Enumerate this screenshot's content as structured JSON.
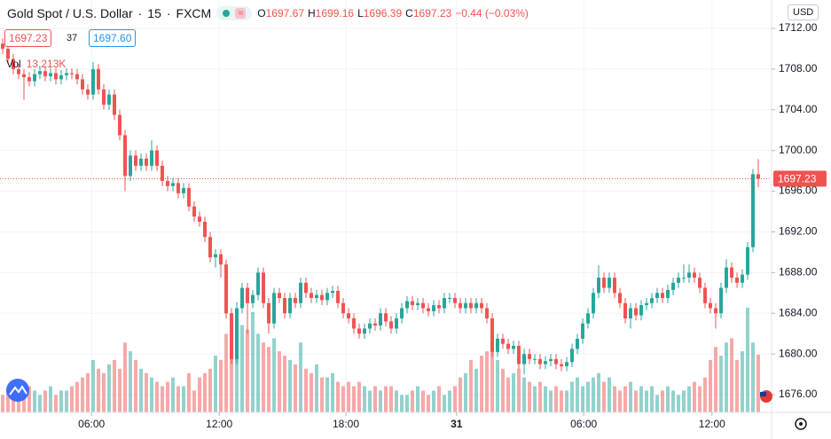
{
  "header": {
    "symbol": "Gold Spot / U.S. Dollar",
    "interval": "15",
    "source": "FXCM",
    "ohlc": [
      {
        "key": "O",
        "value": "1697.67"
      },
      {
        "key": "H",
        "value": "1699.16"
      },
      {
        "key": "L",
        "value": "1696.39"
      },
      {
        "key": "C",
        "value": "1697.23"
      }
    ],
    "change": "−0.44 (−0.03%)",
    "bid": "1697.23",
    "spread": "37",
    "ask": "1697.60",
    "volume_name": "Vol",
    "volume_label": "13.213K",
    "currency": "USD",
    "last_price_label": "1697.23"
  },
  "chart_data": {
    "type": "candlestick",
    "up_color": "#26a69a",
    "down_color": "#ef5350",
    "grid": true,
    "xlim": [
      -0.5,
      144.5
    ],
    "ylim": [
      1674.26,
      1714.79
    ],
    "volume_lim": [
      0,
      94.5
    ],
    "xticks": [
      {
        "value": 16.7,
        "label": "06:00"
      },
      {
        "value": 40.7,
        "label": "12:00"
      },
      {
        "value": 64.5,
        "label": "18:00"
      },
      {
        "value": 85.3,
        "label": "31"
      },
      {
        "value": 109.2,
        "label": "06:00"
      },
      {
        "value": 133.3,
        "label": "12:00"
      }
    ],
    "yticks": [
      {
        "value": 1676,
        "label": "1676.00"
      },
      {
        "value": 1680,
        "label": "1680.00"
      },
      {
        "value": 1684,
        "label": "1684.00"
      },
      {
        "value": 1688,
        "label": "1688.00"
      },
      {
        "value": 1692,
        "label": "1692.00"
      },
      {
        "value": 1696,
        "label": "1696.00"
      },
      {
        "value": 1700,
        "label": "1700.00"
      },
      {
        "value": 1704,
        "label": "1704.00"
      },
      {
        "value": 1708,
        "label": "1708.00"
      },
      {
        "value": 1712,
        "label": "1712.00"
      }
    ],
    "open": [
      1710.5,
      1710,
      1709,
      1708,
      1707.5,
      1707.2,
      1706.8,
      1707.5,
      1707.8,
      1707.3,
      1707.6,
      1707.0,
      1707.4,
      1707.6,
      1707.5,
      1707.0,
      1706.0,
      1705.5,
      1708,
      1706,
      1704.5,
      1705.5,
      1703.5,
      1701.5,
      1697.5,
      1699.5,
      1698.5,
      1699.2,
      1698.5,
      1700,
      1698.5,
      1697,
      1696.5,
      1696.8,
      1695.8,
      1696.3,
      1694.5,
      1693.5,
      1693,
      1691.5,
      1689.5,
      1689.8,
      1688.8,
      1684,
      1679.5,
      1684.5,
      1686.5,
      1685,
      1685.8,
      1688,
      1685,
      1683,
      1686,
      1685.5,
      1684,
      1685.5,
      1685,
      1687,
      1686,
      1685.5,
      1685.8,
      1685.3,
      1686,
      1686.2,
      1685,
      1684,
      1683.5,
      1682.5,
      1682,
      1682.5,
      1683,
      1682.8,
      1684,
      1683.2,
      1682.5,
      1683.5,
      1684.5,
      1685.2,
      1684.8,
      1685,
      1684.5,
      1684.2,
      1684.8,
      1684.5,
      1685.5,
      1685.5,
      1685,
      1684.5,
      1685,
      1684.5,
      1685,
      1684.5,
      1683.5,
      1680.2,
      1681.5,
      1681,
      1680.5,
      1680.8,
      1679,
      1680,
      1679.5,
      1679.5,
      1679,
      1679.3,
      1679.5,
      1679,
      1678.8,
      1679.2,
      1680.5,
      1681.5,
      1683,
      1684,
      1686,
      1687.5,
      1686.5,
      1687.5,
      1686,
      1685,
      1683.5,
      1684.5,
      1683.8,
      1684.8,
      1685,
      1685.5,
      1686,
      1685.5,
      1686.3,
      1687,
      1687.5,
      1687.5,
      1688,
      1687.5,
      1686.5,
      1685,
      1684.5,
      1684,
      1686.5,
      1688.5,
      1687.5,
      1687,
      1687.8,
      1690.5,
      1697.67
    ],
    "high": [
      1711,
      1710.5,
      1709.5,
      1708.5,
      1708,
      1707.7,
      1708,
      1708.3,
      1708.3,
      1708.1,
      1708.1,
      1707.9,
      1708.1,
      1708.1,
      1708,
      1707.5,
      1706.5,
      1708.7,
      1708.5,
      1706.5,
      1706,
      1706,
      1704,
      1702,
      1700,
      1700,
      1699.7,
      1699.7,
      1701,
      1700.5,
      1699,
      1697.5,
      1697.3,
      1697.3,
      1696.8,
      1696.8,
      1695,
      1694,
      1693.5,
      1692,
      1690.3,
      1690.3,
      1689.3,
      1684.5,
      1685.1,
      1687,
      1687,
      1686.3,
      1688.5,
      1688.5,
      1685.5,
      1686.5,
      1686.5,
      1686,
      1686,
      1686,
      1687.5,
      1687.5,
      1686.5,
      1686.3,
      1686.3,
      1686.5,
      1686.7,
      1686.7,
      1685.5,
      1684.5,
      1684,
      1683,
      1683,
      1683.5,
      1683.5,
      1684.5,
      1684.5,
      1683.7,
      1684,
      1685,
      1685.7,
      1685.7,
      1685.5,
      1685.5,
      1685,
      1685.3,
      1685.3,
      1686,
      1686,
      1686,
      1685.5,
      1685.5,
      1685.5,
      1685.5,
      1685.5,
      1685,
      1684,
      1682,
      1682,
      1681.5,
      1681.3,
      1681.3,
      1680.5,
      1680.5,
      1680,
      1680,
      1679.8,
      1680,
      1680,
      1679.5,
      1679.7,
      1681,
      1682,
      1683.5,
      1684.5,
      1686.5,
      1688.7,
      1688,
      1688,
      1688,
      1686.5,
      1685.5,
      1685,
      1685,
      1685.3,
      1685.5,
      1686,
      1686.5,
      1686.5,
      1686.8,
      1687.5,
      1688,
      1688.8,
      1688.8,
      1688.5,
      1688,
      1687,
      1685.5,
      1685,
      1687,
      1689.3,
      1689,
      1688,
      1688.3,
      1691,
      1698.2,
      1699.16
    ],
    "low": [
      1709.5,
      1708.5,
      1707.5,
      1707,
      1705,
      1706.3,
      1706.3,
      1707,
      1706.8,
      1706.8,
      1706.5,
      1706.5,
      1706.9,
      1707,
      1706.5,
      1705.5,
      1705,
      1705,
      1705.5,
      1704,
      1704,
      1703,
      1701,
      1696,
      1697,
      1698,
      1698,
      1698,
      1698,
      1698,
      1696.5,
      1696,
      1696,
      1695.3,
      1695.3,
      1694,
      1693,
      1692.5,
      1691,
      1689,
      1688.5,
      1687.5,
      1683.5,
      1679,
      1679,
      1684,
      1682,
      1684.5,
      1685.3,
      1684.5,
      1682,
      1682.5,
      1685,
      1683.5,
      1683.5,
      1684.5,
      1684.5,
      1685.5,
      1685,
      1685,
      1684.8,
      1684.8,
      1685.5,
      1684.5,
      1683.5,
      1683,
      1682,
      1681.5,
      1681.5,
      1682,
      1682.3,
      1682.3,
      1682.7,
      1682,
      1682,
      1683,
      1684,
      1684.3,
      1684.3,
      1684,
      1683.7,
      1683.7,
      1684,
      1684,
      1685,
      1684.5,
      1684,
      1684,
      1684,
      1684,
      1684,
      1683,
      1679.7,
      1679.7,
      1680.5,
      1680,
      1680,
      1678.5,
      1678,
      1679,
      1679,
      1678.5,
      1678.5,
      1678.8,
      1678.5,
      1678.3,
      1678.3,
      1678.7,
      1680,
      1681,
      1682.5,
      1683.5,
      1685.5,
      1686,
      1686,
      1685.5,
      1684.5,
      1683,
      1682.5,
      1683.3,
      1683.3,
      1684.3,
      1684.5,
      1685,
      1685,
      1685,
      1685.8,
      1686.5,
      1687,
      1687,
      1687,
      1686,
      1684.5,
      1684,
      1682.5,
      1683.5,
      1686,
      1687,
      1686.5,
      1686.5,
      1687.3,
      1690,
      1696.39
    ],
    "close": [
      1710,
      1709,
      1708,
      1707.5,
      1707.2,
      1706.8,
      1707.5,
      1707.8,
      1707.3,
      1707.6,
      1707.0,
      1707.4,
      1707.6,
      1707.5,
      1707.0,
      1706.0,
      1705.5,
      1708,
      1706,
      1704.5,
      1705.5,
      1703.5,
      1701.5,
      1697.5,
      1699.5,
      1698.5,
      1699.2,
      1698.5,
      1700,
      1698.5,
      1697,
      1696.5,
      1696.8,
      1695.8,
      1696.3,
      1694.5,
      1693.5,
      1693,
      1691.5,
      1689.5,
      1689.8,
      1688.8,
      1684,
      1679.5,
      1684.5,
      1686.5,
      1685,
      1685.8,
      1688,
      1685,
      1683,
      1686,
      1685.5,
      1684,
      1685.5,
      1685,
      1687,
      1686,
      1685.5,
      1685.8,
      1685.3,
      1686,
      1686.2,
      1685,
      1684,
      1683.5,
      1682.5,
      1682,
      1682.5,
      1683,
      1682.8,
      1684,
      1683.2,
      1682.5,
      1683.5,
      1684.5,
      1685.2,
      1684.8,
      1685,
      1684.5,
      1684.2,
      1684.8,
      1684.5,
      1685.5,
      1685.5,
      1685,
      1684.5,
      1685,
      1684.5,
      1685,
      1684.5,
      1683.5,
      1680.2,
      1681.5,
      1681,
      1680.5,
      1680.8,
      1679,
      1680,
      1679.5,
      1679.5,
      1679,
      1679.3,
      1679.5,
      1679,
      1678.8,
      1679.2,
      1680.5,
      1681.5,
      1683,
      1684,
      1686,
      1687.5,
      1686.5,
      1687.5,
      1686,
      1685,
      1683.5,
      1684.5,
      1683.8,
      1684.8,
      1685,
      1685.5,
      1686,
      1685.5,
      1686.3,
      1687,
      1687.5,
      1687.5,
      1688,
      1687.5,
      1686.5,
      1685,
      1684.5,
      1684,
      1686.5,
      1688.5,
      1687.5,
      1687,
      1687.8,
      1690.5,
      1697.67,
      1697.23
    ],
    "volume": [
      4,
      5,
      6,
      5,
      4,
      6,
      5,
      4,
      5,
      6,
      4,
      5,
      5,
      6,
      7,
      8,
      9,
      12,
      10,
      9,
      11,
      12,
      10,
      16,
      14,
      12,
      10,
      9,
      8,
      7,
      6,
      7,
      8,
      6,
      6,
      9,
      5,
      8,
      9,
      10,
      13,
      12,
      18,
      15,
      22,
      20,
      19,
      23,
      18,
      16,
      15,
      17,
      14,
      13,
      12,
      11,
      16,
      10,
      9,
      11,
      8,
      8,
      9,
      7,
      6,
      7,
      6,
      7,
      6,
      5,
      6,
      5,
      6,
      6,
      5,
      4,
      4,
      5,
      6,
      5,
      4,
      5,
      6,
      4,
      5,
      6,
      8,
      9,
      12,
      10,
      13,
      14,
      16,
      12,
      10,
      8,
      9,
      10,
      8,
      7,
      6,
      7,
      6,
      5,
      6,
      5,
      5,
      7,
      8,
      6,
      7,
      8,
      9,
      7,
      8,
      6,
      5,
      6,
      7,
      5,
      6,
      5,
      6,
      4,
      5,
      6,
      5,
      4,
      5,
      6,
      7,
      6,
      8,
      12,
      15,
      13,
      16,
      17,
      12,
      14,
      24,
      16,
      13.213
    ]
  }
}
